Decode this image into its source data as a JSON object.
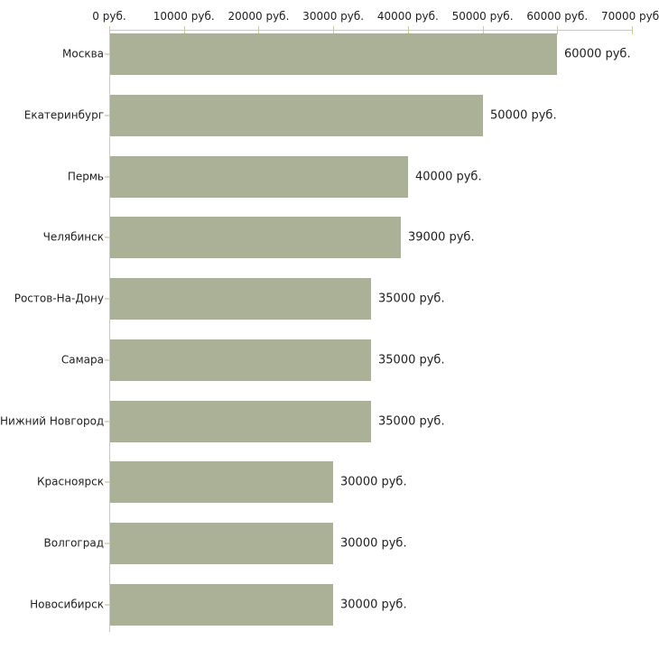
{
  "chart_data": {
    "type": "bar",
    "orientation": "horizontal",
    "title": "",
    "xlabel": "",
    "ylabel": "",
    "unit": "руб.",
    "categories": [
      "Москва",
      "Екатеринбург",
      "Пермь",
      "Челябинск",
      "Ростов-На-Дону",
      "Самара",
      "Нижний Новгород",
      "Красноярск",
      "Волгоград",
      "Новосибирск"
    ],
    "values": [
      60000,
      50000,
      40000,
      39000,
      35000,
      35000,
      35000,
      30000,
      30000,
      30000
    ],
    "value_labels": [
      "60000 руб.",
      "50000 руб.",
      "40000 руб.",
      "39000 руб.",
      "35000 руб.",
      "35000 руб.",
      "35000 руб.",
      "30000 руб.",
      "30000 руб.",
      "30000 руб."
    ],
    "x_axis": {
      "position": "top",
      "range": [
        0,
        70000
      ],
      "ticks": [
        0,
        10000,
        20000,
        30000,
        40000,
        50000,
        60000,
        70000
      ],
      "tick_labels": [
        "0 руб.",
        "10000 руб.",
        "20000 руб.",
        "30000 руб.",
        "40000 руб.",
        "50000 руб.",
        "60000 руб.",
        "70000 руб."
      ]
    },
    "legend": null,
    "grid": false,
    "colors": {
      "bar": "#abb197",
      "axis_line": "#c8c8c8",
      "axis_tick": "#cccc99",
      "row_tick": "#dcdcba",
      "text": "#1f1f1f",
      "background": "#ffffff"
    }
  }
}
